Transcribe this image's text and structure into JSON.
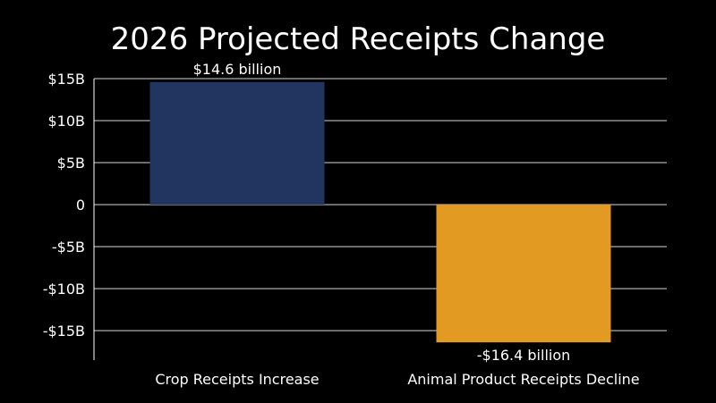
{
  "chart_data": {
    "type": "bar",
    "title": "2026 Projected Receipts Change",
    "categories": [
      "Crop Receipts Increase",
      "Animal Product Receipts Decline"
    ],
    "values": [
      14.6,
      -16.4
    ],
    "data_labels": [
      "$14.6 billion",
      "-$16.4 billion"
    ],
    "colors": [
      "#223460",
      "#E39A22"
    ],
    "yticks": [
      15,
      10,
      5,
      0,
      -5,
      -10,
      -15
    ],
    "ytick_labels": [
      "$15B",
      "$10B",
      "$5B",
      "0",
      "-$5B",
      "-$10B",
      "-$15B"
    ],
    "ylim": [
      -18.5,
      15
    ],
    "grid": true,
    "xlabel": "",
    "ylabel": ""
  },
  "colors": {
    "background": "#000000",
    "text": "#FFFFFF",
    "grid": "#FFFFFF"
  }
}
